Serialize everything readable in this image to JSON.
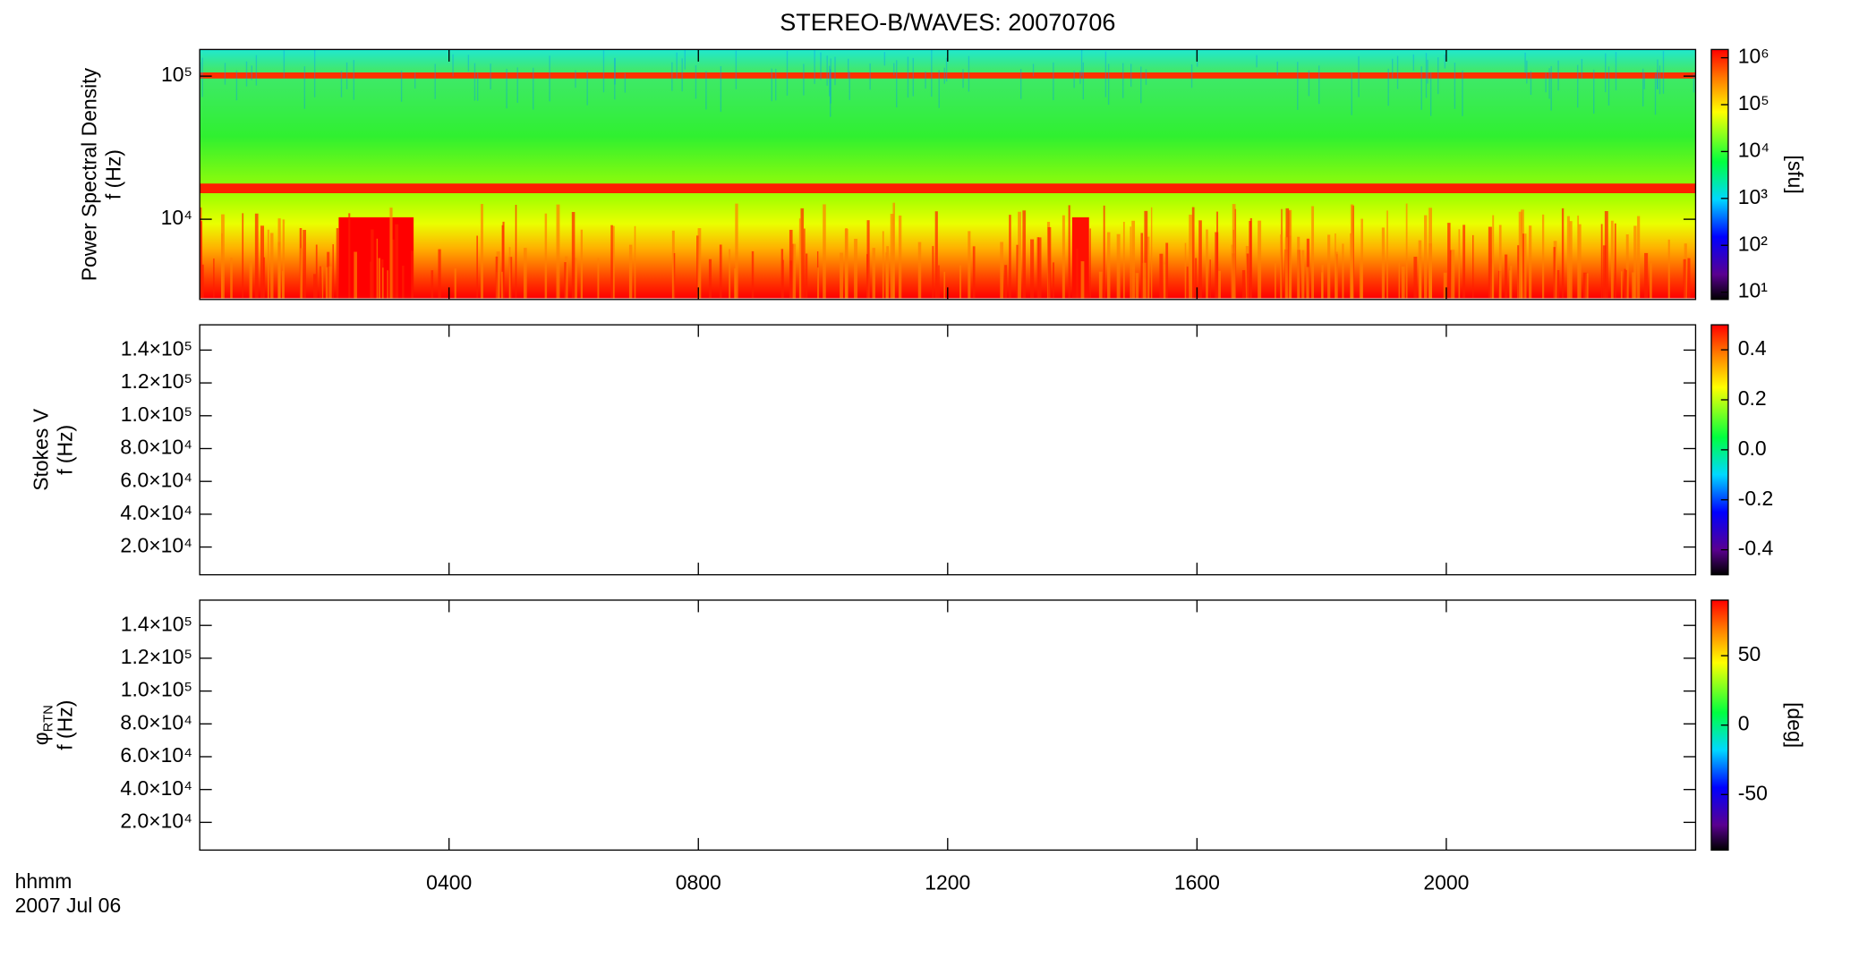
{
  "chart_data": [
    {
      "type": "heatmap",
      "title": "STEREO-B/WAVES: 20070706",
      "ylabel": [
        "Power Spectral Density",
        "f (Hz)"
      ],
      "ylog": true,
      "ylim": [
        2750,
        153500
      ],
      "yticks": [
        {
          "value": 10000,
          "label": "10⁴"
        },
        {
          "value": 100000,
          "label": "10⁵"
        }
      ],
      "clim": [
        7,
        1500000
      ],
      "clog": true,
      "clabel": "[sfu]",
      "cticks": [
        {
          "value": 10,
          "label": "10¹"
        },
        {
          "value": 100,
          "label": "10²"
        },
        {
          "value": 1000,
          "label": "10³"
        },
        {
          "value": 10000,
          "label": "10⁴"
        },
        {
          "value": 100000,
          "label": "10⁵"
        },
        {
          "value": 1000000,
          "label": "10⁶"
        }
      ]
    },
    {
      "type": "heatmap",
      "ylabel": [
        "Stokes V",
        "f (Hz)"
      ],
      "ylog": false,
      "ylim": [
        3100,
        155400
      ],
      "yticks": [
        {
          "value": 20000,
          "label": "2.0×10⁴"
        },
        {
          "value": 40000,
          "label": "4.0×10⁴"
        },
        {
          "value": 60000,
          "label": "6.0×10⁴"
        },
        {
          "value": 80000,
          "label": "8.0×10⁴"
        },
        {
          "value": 100000,
          "label": "1.0×10⁵"
        },
        {
          "value": 120000,
          "label": "1.2×10⁵"
        },
        {
          "value": 140000,
          "label": "1.4×10⁵"
        }
      ],
      "clim": [
        -0.5,
        0.5
      ],
      "clog": false,
      "cticks": [
        {
          "value": -0.4,
          "label": "-0.4"
        },
        -0.2,
        {
          "value": 0,
          "label": "0.0"
        },
        0.2,
        0.4
      ]
    },
    {
      "type": "heatmap",
      "ylabel": [
        "φ_RTN",
        "f (Hz)"
      ],
      "ylog": false,
      "ylim": [
        3100,
        155400
      ],
      "yticks": [
        {
          "value": 20000,
          "label": "2.0×10⁴"
        },
        {
          "value": 40000,
          "label": "4.0×10⁴"
        },
        {
          "value": 60000,
          "label": "6.0×10⁴"
        },
        {
          "value": 80000,
          "label": "8.0×10⁴"
        },
        {
          "value": 100000,
          "label": "1.0×10⁵"
        },
        {
          "value": 120000,
          "label": "1.2×10⁵"
        },
        {
          "value": 140000,
          "label": "1.4×10⁵"
        }
      ],
      "clim": [
        -90,
        90
      ],
      "clog": false,
      "clabel": "[deg]",
      "cticks": [
        -50,
        0,
        50
      ],
      "xlabel": [
        "hhmm",
        "2007 Jul 06"
      ],
      "xlim": [
        0,
        24
      ],
      "xticks": [
        {
          "value": 4,
          "label": "0400"
        },
        {
          "value": 8,
          "label": "0800"
        },
        {
          "value": 12,
          "label": "1200"
        },
        {
          "value": 16,
          "label": "1600"
        },
        {
          "value": 20,
          "label": "2000"
        }
      ]
    }
  ]
}
